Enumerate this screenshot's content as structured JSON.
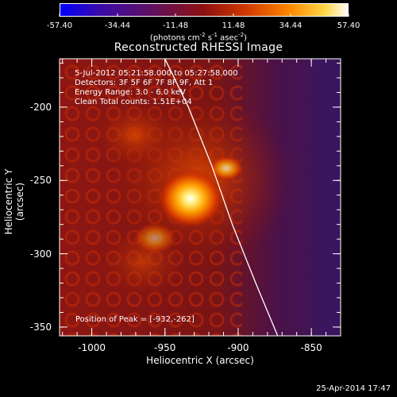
{
  "colorbar": {
    "ticks": [
      "-57.40",
      "-34.44",
      "-11.48",
      "11.48",
      "34.44",
      "57.40"
    ],
    "unit_prefix": "(photons cm",
    "unit_exp1": "-2",
    "unit_mid": " s",
    "unit_exp2": "-1",
    "unit_mid2": " asec",
    "unit_exp3": "-2",
    "unit_suffix": ")",
    "range": [
      -57.4,
      57.4
    ],
    "colors": [
      "#0000ff",
      "#3a0aa8",
      "#5a1068",
      "#8e1010",
      "#d23a00",
      "#ff8a00",
      "#ffd84a",
      "#ffffff"
    ]
  },
  "annotations": {
    "line1": "5-Jul-2012 05:21:58.000 to 05:27:58.000",
    "line2": "Detectors: 3F 5F 6F 7F 8F 9F, Att 1",
    "line3": "Energy Range: 3.0 - 6.0 keV",
    "line4": "Clean     Total counts: 1.51E+04",
    "peak": "Position of Peak = [-932,-262]"
  },
  "timestamp": "25-Apr-2014 17:47",
  "chart_data": {
    "type": "heatmap",
    "title": "Reconstructed RHESSI Image",
    "xlabel": "Heliocentric X (arcsec)",
    "ylabel": "Heliocentric Y (arcsec)",
    "xlim": [
      -1022,
      -830
    ],
    "ylim": [
      -356,
      -167
    ],
    "xticks": [
      -1000,
      -950,
      -900,
      -850
    ],
    "yticks": [
      -200,
      -250,
      -300,
      -350
    ],
    "peak": [
      -932,
      -262
    ],
    "limb_curve": [
      [
        -950,
        -167
      ],
      [
        -934,
        -200
      ],
      [
        -918,
        -240
      ],
      [
        -904,
        -280
      ],
      [
        -888,
        -320
      ],
      [
        -873,
        -356
      ]
    ]
  }
}
